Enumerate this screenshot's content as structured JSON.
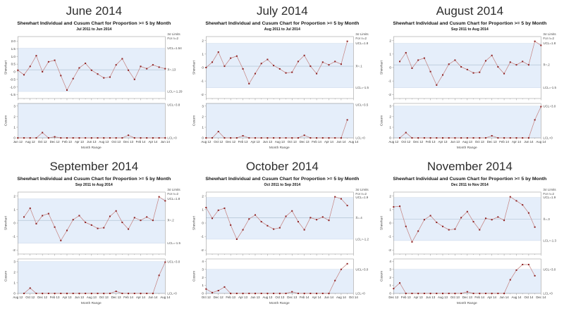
{
  "colors": {
    "band": "#e5eefa",
    "band_edge": "#cddaeb",
    "marker": "#8e1f1f",
    "line": "#c4807e",
    "mean_line": "#a9bccd",
    "axis": "#8a8a8a",
    "tick_text": "#333333",
    "label_text": "#4a4a4a",
    "title_text": "#2d2d2d"
  },
  "chart_data": [
    {
      "type": "line",
      "title": "June 2014",
      "chart_title": "Shewhart Individual and Cusum Chart for Proportion >= 5 by Month",
      "subtitle": "Jul 2011 to Jun 2014",
      "limits_note": [
        "3σ Limits",
        "For n=2"
      ],
      "xlabel": "Month Range",
      "x_slots": 24,
      "start_month": 0,
      "xticks": [
        "Jun 12",
        "Aug 12",
        "Oct 12",
        "Dec 12",
        "Feb 13",
        "Apr 13",
        "Jun 13",
        "Aug 13",
        "Oct 13",
        "Dec 13",
        "Feb 14",
        "Apr 14",
        "Jun 14"
      ],
      "shewhart": {
        "ylabel": "Shewhart",
        "ylim": [
          -1.75,
          2.3
        ],
        "yticks": [
          {
            "label": "2.0",
            "v": 2.0
          },
          {
            "label": "1.5",
            "v": 1.5
          },
          {
            "label": "1.0",
            "v": 1.0
          },
          {
            "label": "0.5",
            "v": 0.5
          },
          {
            "label": "0",
            "v": 0
          },
          {
            "label": "-0.5",
            "v": -0.5
          },
          {
            "label": "-1.0",
            "v": -1.0
          },
          {
            "label": "-1.5",
            "v": -1.5
          }
        ],
        "ucl": 1.54,
        "mean": 0.13,
        "lcl": -1.29,
        "ucl_label": "UCL=1.54",
        "mean_label": "X̄=.13",
        "lcl_label": "LCL=-1.29",
        "values": [
          0.1,
          -0.2,
          0.35,
          1.05,
          0.0,
          0.65,
          0.75,
          -0.25,
          -1.2,
          -0.45,
          0.25,
          0.55,
          0.1,
          -0.15,
          -0.4,
          -0.35,
          0.45,
          0.85,
          0.1,
          -0.5,
          0.35,
          0.2,
          0.45,
          0.3,
          0.2
        ]
      },
      "cusum": {
        "ylabel": "Cusum",
        "ylim": [
          0,
          3.25
        ],
        "yticks": [
          {
            "label": "3",
            "v": 3
          },
          {
            "label": "2",
            "v": 2
          },
          {
            "label": "1",
            "v": 1
          },
          {
            "label": "0",
            "v": 0
          }
        ],
        "ucl": 3.8,
        "lcl": 0,
        "ucl_label": "UCL=3.8",
        "lcl_label": "LCL=0",
        "values": [
          0,
          0,
          0,
          0,
          0.5,
          0,
          0.1,
          0,
          0,
          0,
          0,
          0,
          0,
          0,
          0,
          0,
          0,
          0,
          0.25,
          0,
          0,
          0,
          0,
          0,
          0
        ]
      }
    },
    {
      "type": "line",
      "title": "July 2014",
      "chart_title": "Shewhart Individual and Cusum Chart for Proportion >= 5 by Month",
      "subtitle": "Aug 2011 to Jul 2014",
      "limits_note": [
        "3σ Limits",
        "For n=2"
      ],
      "xlabel": "Month Range",
      "x_slots": 24,
      "start_month": 0,
      "xticks": [
        "Aug 12",
        "Oct 12",
        "Dec 12",
        "Feb 13",
        "Apr 13",
        "Jun 13",
        "Aug 13",
        "Oct 13",
        "Dec 13",
        "Feb 14",
        "Apr 14",
        "Jun 14",
        "Aug 14"
      ],
      "shewhart": {
        "ylabel": "Shewhart",
        "ylim": [
          -2.3,
          2.3
        ],
        "yticks": [
          {
            "label": "2",
            "v": 2
          },
          {
            "label": "1",
            "v": 1
          },
          {
            "label": "0",
            "v": 0
          },
          {
            "label": "-1",
            "v": -1
          },
          {
            "label": "-2",
            "v": -2
          }
        ],
        "ucl": 1.8,
        "mean": 0.1,
        "lcl": -1.5,
        "ucl_label": "UCL=1.8",
        "mean_label": "X̄=.1",
        "lcl_label": "LCL=-1.5",
        "values": [
          0.0,
          0.4,
          1.15,
          0.1,
          0.7,
          0.85,
          -0.1,
          -1.2,
          -0.45,
          0.3,
          0.6,
          0.15,
          -0.1,
          -0.4,
          -0.35,
          0.45,
          0.9,
          0.1,
          -0.45,
          0.4,
          0.2,
          0.45,
          0.25,
          1.95
        ]
      },
      "cusum": {
        "ylabel": "Cusum",
        "ylim": [
          0,
          3.25
        ],
        "yticks": [
          {
            "label": "3",
            "v": 3
          },
          {
            "label": "2",
            "v": 2
          },
          {
            "label": "1",
            "v": 1
          },
          {
            "label": "0",
            "v": 0
          }
        ],
        "ucl": 3.5,
        "lcl": 0,
        "ucl_label": "UCL=3.5",
        "lcl_label": "LCL=0",
        "values": [
          0,
          0,
          0.6,
          0,
          0,
          0,
          0.2,
          0,
          0,
          0,
          0,
          0,
          0,
          0,
          0,
          0,
          0.25,
          0,
          0,
          0,
          0,
          0,
          0,
          1.7
        ]
      }
    },
    {
      "type": "line",
      "title": "August 2014",
      "chart_title": "Shewhart Individual and Cusum Chart for Proportion >= 5 by Month",
      "subtitle": "Sep 2011 to Aug 2014",
      "limits_note": [
        "3σ Limits",
        "For n=2"
      ],
      "xlabel": "Month Range",
      "x_slots": 24,
      "start_month": 1,
      "xticks": [
        "Aug 12",
        "Oct 12",
        "Dec 12",
        "Feb 13",
        "Apr 13",
        "Jun 13",
        "Aug 13",
        "Oct 13",
        "Dec 13",
        "Feb 14",
        "Apr 14",
        "Jun 14",
        "Aug 14"
      ],
      "shewhart": {
        "ylabel": "Shewhart",
        "ylim": [
          -2.3,
          2.3
        ],
        "yticks": [
          {
            "label": "2",
            "v": 2
          },
          {
            "label": "1",
            "v": 1
          },
          {
            "label": "0",
            "v": 0
          },
          {
            "label": "-1",
            "v": -1
          },
          {
            "label": "-2",
            "v": -2
          }
        ],
        "ucl": 1.8,
        "mean": 0.2,
        "lcl": -1.5,
        "ucl_label": "UCL=1.8",
        "mean_label": "X̄=.2",
        "lcl_label": "LCL=-1.5",
        "values": [
          0.45,
          1.1,
          -0.05,
          0.55,
          0.7,
          -0.3,
          -1.3,
          -0.55,
          0.25,
          0.55,
          0.05,
          -0.15,
          -0.4,
          -0.35,
          0.5,
          0.9,
          0.05,
          -0.45,
          0.4,
          0.2,
          0.45,
          0.2,
          1.95,
          1.65
        ]
      },
      "cusum": {
        "ylabel": "Cusum",
        "ylim": [
          0,
          3.25
        ],
        "yticks": [
          {
            "label": "3",
            "v": 3
          },
          {
            "label": "2",
            "v": 2
          },
          {
            "label": "1",
            "v": 1
          },
          {
            "label": "0",
            "v": 0
          }
        ],
        "ucl": 3.0,
        "lcl": 0,
        "ucl_label": "UCL=3.0",
        "lcl_label": "LCL=0",
        "values": [
          0,
          0.5,
          0,
          0,
          0,
          0,
          0,
          0,
          0,
          0,
          0,
          0,
          0,
          0,
          0,
          0.2,
          0,
          0,
          0,
          0,
          0,
          0,
          1.7,
          2.95
        ]
      }
    },
    {
      "type": "line",
      "title": "September 2014",
      "chart_title": "Shewhart Individual and Cusum Chart for Proportion >= 5 by Month",
      "subtitle": "Sep 2011 to Aug 2014",
      "limits_note": [
        "3σ Limits",
        "For n=2"
      ],
      "xlabel": "Month Range",
      "x_slots": 24,
      "start_month": 1,
      "xticks": [
        "Aug 12",
        "Oct 12",
        "Dec 12",
        "Feb 13",
        "Apr 13",
        "Jun 13",
        "Aug 13",
        "Oct 13",
        "Dec 13",
        "Feb 14",
        "Apr 14",
        "Jun 14",
        "Aug 14"
      ],
      "shewhart": {
        "ylabel": "Shewhart",
        "ylim": [
          -2.3,
          2.3
        ],
        "yticks": [
          {
            "label": "2",
            "v": 2
          },
          {
            "label": "1",
            "v": 1
          },
          {
            "label": "0",
            "v": 0
          },
          {
            "label": "-1",
            "v": -1
          },
          {
            "label": "-2",
            "v": -2
          }
        ],
        "ucl": 1.8,
        "mean": 0.2,
        "lcl": -1.5,
        "ucl_label": "UCL=1.8",
        "mean_label": "X̄=.2",
        "lcl_label": "LCL=-1.5",
        "values": [
          0.45,
          1.1,
          -0.05,
          0.55,
          0.7,
          -0.3,
          -1.3,
          -0.55,
          0.25,
          0.55,
          0.05,
          -0.15,
          -0.4,
          -0.35,
          0.5,
          0.9,
          0.05,
          -0.45,
          0.4,
          0.2,
          0.45,
          0.2,
          1.95,
          1.65
        ]
      },
      "cusum": {
        "ylabel": "Cusum",
        "ylim": [
          0,
          3.25
        ],
        "yticks": [
          {
            "label": "3",
            "v": 3
          },
          {
            "label": "2",
            "v": 2
          },
          {
            "label": "1",
            "v": 1
          },
          {
            "label": "0",
            "v": 0
          }
        ],
        "ucl": 3.0,
        "lcl": 0,
        "ucl_label": "UCL=3.0",
        "lcl_label": "LCL=0",
        "values": [
          0,
          0.5,
          0,
          0,
          0,
          0,
          0,
          0,
          0,
          0,
          0,
          0,
          0,
          0,
          0,
          0.2,
          0,
          0,
          0,
          0,
          0,
          0,
          1.7,
          2.95
        ]
      }
    },
    {
      "type": "line",
      "title": "October 2014",
      "chart_title": "Shewhart Individual and Cusum Chart for Proportion >= 5 by Month",
      "subtitle": "Oct 2011 to Sep 2014",
      "limits_note": [
        "3σ Limits",
        "For n=2"
      ],
      "xlabel": "Month Range",
      "x_slots": 24,
      "start_month": 0,
      "xticks": [
        "Oct 12",
        "Dec 12",
        "Feb 13",
        "Apr 13",
        "Jun 13",
        "Aug 13",
        "Oct 13",
        "Dec 13",
        "Feb 14",
        "Apr 14",
        "Jun 14",
        "Aug 14",
        "Oct 14"
      ],
      "shewhart": {
        "ylabel": "Shewhart",
        "ylim": [
          -2.3,
          2.3
        ],
        "yticks": [
          {
            "label": "2",
            "v": 2
          },
          {
            "label": "1",
            "v": 1
          },
          {
            "label": "0",
            "v": 0
          },
          {
            "label": "-1",
            "v": -1
          },
          {
            "label": "-2",
            "v": -2
          }
        ],
        "ucl": 1.9,
        "mean": 0.4,
        "lcl": -1.2,
        "ucl_label": "UCL=1.9",
        "mean_label": "X̄=.4",
        "lcl_label": "LCL=-1.2",
        "values": [
          1.15,
          0.35,
          0.95,
          1.1,
          -0.15,
          -1.2,
          -0.5,
          0.3,
          0.6,
          0.1,
          -0.2,
          -0.45,
          -0.35,
          0.5,
          0.9,
          0.1,
          -0.5,
          0.4,
          0.25,
          0.45,
          0.2,
          1.95,
          1.8,
          1.3
        ]
      },
      "cusum": {
        "ylabel": "Cusum",
        "ylim": [
          0,
          4.3
        ],
        "yticks": [
          {
            "label": "4",
            "v": 4
          },
          {
            "label": "3",
            "v": 3
          },
          {
            "label": "2",
            "v": 2
          },
          {
            "label": "1",
            "v": 1
          },
          {
            "label": "0",
            "v": 0
          }
        ],
        "ucl": 3.0,
        "lcl": 0,
        "ucl_label": "UCL=3.0",
        "lcl_label": "LCL=0",
        "values": [
          0.55,
          0.1,
          0.35,
          0.8,
          0,
          0,
          0,
          0,
          0,
          0,
          0,
          0,
          0,
          0,
          0.2,
          0,
          0,
          0,
          0,
          0,
          0,
          1.6,
          3.0,
          3.7
        ]
      }
    },
    {
      "type": "line",
      "title": "November 2014",
      "chart_title": "Shewhart Individual and Cusum Chart for Proportion >= 5 by Month",
      "subtitle": "Dec 2011 to Nov 2014",
      "limits_note": [
        "3σ Limits",
        "For n=2"
      ],
      "xlabel": "Month Range",
      "x_slots": 24,
      "start_month": 0,
      "xticks": [
        "Dec 12",
        "Feb 13",
        "Apr 13",
        "Jun 13",
        "Aug 13",
        "Oct 13",
        "Dec 13",
        "Feb 14",
        "Apr 14",
        "Jun 14",
        "Aug 14",
        "Oct 14",
        "Dec 14"
      ],
      "shewhart": {
        "ylabel": "Shewhart",
        "ylim": [
          -2.3,
          2.3
        ],
        "yticks": [
          {
            "label": "2",
            "v": 2
          },
          {
            "label": "1",
            "v": 1
          },
          {
            "label": "0",
            "v": 0
          },
          {
            "label": "-1",
            "v": -1
          },
          {
            "label": "-2",
            "v": -2
          }
        ],
        "ucl": 1.9,
        "mean": 0.3,
        "lcl": -1.3,
        "ucl_label": "UCL=1.9",
        "mean_label": "X̄=.3",
        "lcl_label": "LCL=-1.3",
        "values": [
          1.2,
          1.25,
          -0.25,
          -1.4,
          -0.6,
          0.25,
          0.55,
          0.05,
          -0.25,
          -0.5,
          -0.45,
          0.4,
          0.85,
          0.1,
          -0.5,
          0.35,
          0.25,
          0.45,
          0.2,
          1.95,
          1.65,
          1.35,
          0.75,
          -0.3
        ]
      },
      "cusum": {
        "ylabel": "Cusum",
        "ylim": [
          0,
          4.3
        ],
        "yticks": [
          {
            "label": "4",
            "v": 4
          },
          {
            "label": "3",
            "v": 3
          },
          {
            "label": "2",
            "v": 2
          },
          {
            "label": "1",
            "v": 1
          },
          {
            "label": "0",
            "v": 0
          }
        ],
        "ucl": 3.0,
        "lcl": 0,
        "ucl_label": "UCL=3.0",
        "lcl_label": "LCL=0",
        "values": [
          0.6,
          1.3,
          0,
          0,
          0,
          0,
          0,
          0,
          0,
          0,
          0,
          0,
          0.2,
          0,
          0,
          0,
          0,
          0,
          0,
          1.7,
          2.9,
          3.6,
          3.6,
          2.2
        ]
      }
    }
  ]
}
